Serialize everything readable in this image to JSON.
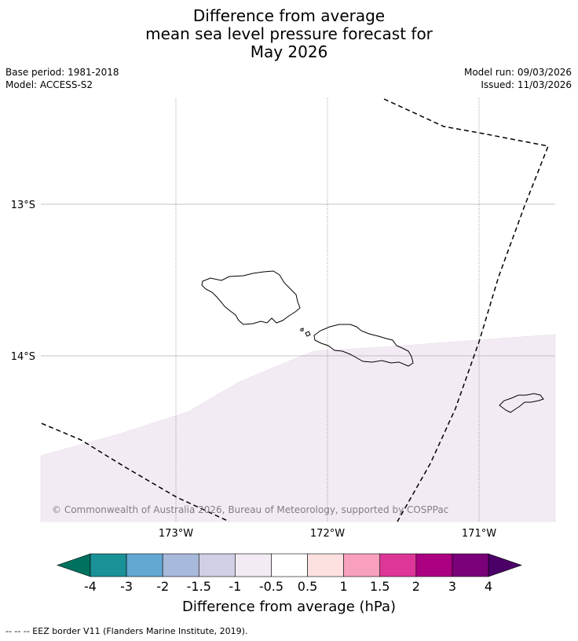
{
  "title": {
    "line1": "Difference from average",
    "line2": "mean sea level pressure forecast for",
    "line3": "May 2026"
  },
  "meta": {
    "base_period": "Base period: 1981-2018",
    "model": "Model: ACCESS-S2",
    "model_run": "Model run: 09/03/2026",
    "issued": "Issued: 11/03/2026"
  },
  "map": {
    "lat_labels": [
      "13°S",
      "14°S"
    ],
    "lon_labels": [
      "173°W",
      "172°W",
      "171°W"
    ],
    "copyright": "© Commonwealth of Australia 2026, Bureau of Meteorology, supported by COSPPac",
    "anomaly_fill_color": "#f3ebf4",
    "islands": [
      "Savai'i",
      "Upolu",
      "Tutuila"
    ]
  },
  "colorbar": {
    "colors": [
      "#00715e",
      "#1a9196",
      "#63a8d3",
      "#a7badb",
      "#cfcfe6",
      "#f3ebf4",
      "#ffffff",
      "#fde0e0",
      "#f8a0bd",
      "#dd3698",
      "#ac0083",
      "#7a007a",
      "#4b0068"
    ],
    "labels": [
      "-4",
      "-3",
      "-2",
      "-1.5",
      "-1",
      "-0.5",
      "0.5",
      "1",
      "1.5",
      "2",
      "3",
      "4"
    ],
    "title": "Difference from average (hPa)"
  },
  "footer": "--  --  -- EEZ border V11 (Flanders Marine Institute, 2019)."
}
